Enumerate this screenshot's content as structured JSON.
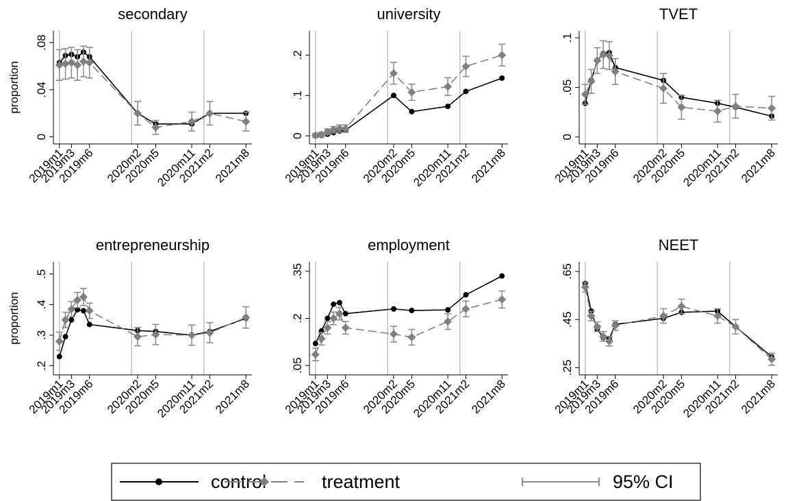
{
  "x_axis": {
    "x": [
      0,
      1,
      2,
      3,
      4,
      5,
      13,
      16,
      22,
      25,
      31
    ],
    "xlim": [
      -1,
      32
    ],
    "xticks": [
      {
        "value": 0,
        "label": "2019m1"
      },
      {
        "value": 2,
        "label": "2019m3"
      },
      {
        "value": 5,
        "label": "2019m6"
      },
      {
        "value": 13,
        "label": "2020m2"
      },
      {
        "value": 16,
        "label": "2020m5"
      },
      {
        "value": 22,
        "label": "2020m11"
      },
      {
        "value": 25,
        "label": "2021m2"
      },
      {
        "value": 31,
        "label": "2021m8"
      }
    ],
    "xlines": [
      0,
      12,
      24
    ]
  },
  "legend": [
    {
      "name": "control",
      "color": "#000000"
    },
    {
      "name": "treatment",
      "color": "#808080"
    },
    {
      "name": "95% CI",
      "color": "#8c8c8c"
    }
  ],
  "chart_data": [
    {
      "type": "line",
      "title": "secondary",
      "ylabel": "proportion",
      "ylim": [
        -0.006,
        0.09
      ],
      "yticks": [
        0,
        {
          "value": 0.04,
          "label": ".04"
        },
        {
          "value": 0.08,
          "label": ".08"
        }
      ],
      "series": [
        {
          "values": [
            0.063,
            0.069,
            0.07,
            0.068,
            0.072,
            0.068,
            0.02,
            0.011,
            0.011,
            0.02,
            0.02
          ]
        },
        {
          "values": [
            0.061,
            0.062,
            0.063,
            0.061,
            0.064,
            0.063,
            0.02,
            0.008,
            0.013,
            0.02,
            0.013
          ],
          "errors": [
            0.013,
            0.013,
            0.013,
            0.013,
            0.013,
            0.013,
            0.01,
            0.006,
            0.008,
            0.01,
            0.008
          ]
        }
      ]
    },
    {
      "type": "line",
      "title": "university",
      "ylim": [
        -0.02,
        0.26
      ],
      "yticks": [
        0,
        {
          "value": 0.1,
          "label": ".1"
        },
        {
          "value": 0.2,
          "label": ".2"
        }
      ],
      "series": [
        {
          "values": [
            0,
            0.001,
            0.004,
            0.008,
            0.012,
            0.014,
            0.1,
            0.06,
            0.073,
            0.11,
            0.143
          ]
        },
        {
          "values": [
            0.001,
            0.003,
            0.01,
            0.015,
            0.018,
            0.018,
            0.155,
            0.108,
            0.122,
            0.172,
            0.2
          ],
          "errors": [
            0.005,
            0.006,
            0.007,
            0.008,
            0.009,
            0.009,
            0.027,
            0.02,
            0.022,
            0.025,
            0.027
          ]
        }
      ]
    },
    {
      "type": "line",
      "title": "TVET",
      "ylim": [
        -0.007,
        0.107
      ],
      "yticks": [
        0,
        {
          "value": 0.05,
          "label": ".05"
        },
        {
          "value": 0.1,
          "label": ".1"
        }
      ],
      "series": [
        {
          "values": [
            0.034,
            0.057,
            0.077,
            0.084,
            0.085,
            0.07,
            0.057,
            0.04,
            0.034,
            0.03,
            0.021
          ]
        },
        {
          "values": [
            0.043,
            0.056,
            0.077,
            0.083,
            0.082,
            0.066,
            0.049,
            0.03,
            0.026,
            0.031,
            0.029
          ],
          "errors": [
            0.01,
            0.012,
            0.013,
            0.014,
            0.014,
            0.013,
            0.015,
            0.012,
            0.011,
            0.012,
            0.012
          ]
        }
      ]
    },
    {
      "type": "line",
      "title": "entrepreneurship",
      "ylabel": "proportion",
      "ylim": [
        0.17,
        0.54
      ],
      "yticks": [
        {
          "value": 0.2,
          "label": ".2"
        },
        {
          "value": 0.3,
          "label": ".3"
        },
        {
          "value": 0.4,
          "label": ".4"
        },
        {
          "value": 0.5,
          "label": ".5"
        }
      ],
      "series": [
        {
          "values": [
            0.23,
            0.295,
            0.35,
            0.383,
            0.38,
            0.335,
            0.315,
            0.312,
            0.3,
            0.312,
            0.355
          ]
        },
        {
          "values": [
            0.28,
            0.35,
            0.385,
            0.415,
            0.425,
            0.38,
            0.295,
            0.302,
            0.3,
            0.308,
            0.358
          ],
          "errors": [
            0.03,
            0.025,
            0.025,
            0.025,
            0.028,
            0.025,
            0.03,
            0.033,
            0.033,
            0.033,
            0.035
          ]
        }
      ]
    },
    {
      "type": "line",
      "title": "employment",
      "ylim": [
        0.02,
        0.38
      ],
      "yticks": [
        {
          "value": 0.05,
          "label": ".05"
        },
        {
          "value": 0.2,
          "label": ".2"
        },
        {
          "value": 0.35,
          "label": ".35"
        }
      ],
      "series": [
        {
          "values": [
            0.12,
            0.16,
            0.2,
            0.245,
            0.25,
            0.215,
            0.23,
            0.225,
            0.227,
            0.275,
            0.335
          ]
        },
        {
          "values": [
            0.085,
            0.135,
            0.17,
            0.2,
            0.215,
            0.17,
            0.15,
            0.14,
            0.19,
            0.23,
            0.26
          ],
          "errors": [
            0.02,
            0.02,
            0.02,
            0.02,
            0.02,
            0.02,
            0.025,
            0.025,
            0.025,
            0.025,
            0.027
          ]
        }
      ]
    },
    {
      "type": "line",
      "title": "NEET",
      "ylim": [
        0.22,
        0.69
      ],
      "yticks": [
        {
          "value": 0.25,
          "label": ".25"
        },
        {
          "value": 0.45,
          "label": ".45"
        },
        {
          "value": 0.65,
          "label": ".65"
        }
      ],
      "series": [
        {
          "values": [
            0.6,
            0.485,
            0.41,
            0.375,
            0.37,
            0.43,
            0.455,
            0.48,
            0.485,
            0.42,
            0.295
          ]
        },
        {
          "values": [
            0.585,
            0.465,
            0.42,
            0.38,
            0.36,
            0.425,
            0.465,
            0.505,
            0.465,
            0.42,
            0.285
          ],
          "errors": [
            0.02,
            0.02,
            0.02,
            0.02,
            0.02,
            0.02,
            0.03,
            0.03,
            0.03,
            0.03,
            0.025
          ]
        }
      ]
    }
  ]
}
